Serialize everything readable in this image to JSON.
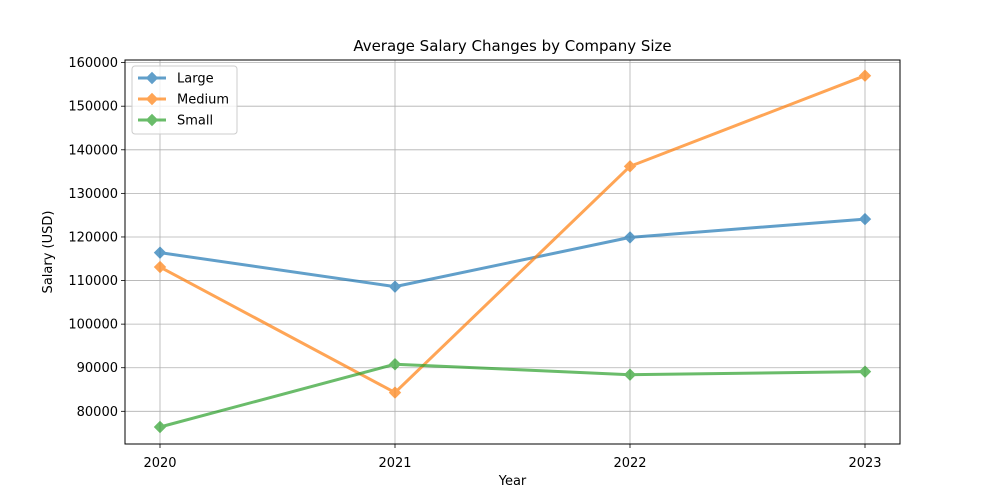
{
  "chart_data": {
    "type": "line",
    "title": "Average Salary Changes by Company Size",
    "xlabel": "Year",
    "ylabel": "Salary (USD)",
    "categories": [
      "2020",
      "2021",
      "2022",
      "2023"
    ],
    "ylim": [
      72500,
      160600
    ],
    "yticks": [
      80000,
      90000,
      100000,
      110000,
      120000,
      130000,
      140000,
      150000,
      160000
    ],
    "grid": true,
    "legend_position": "top-left",
    "marker": "diamond",
    "series": [
      {
        "name": "Large",
        "color": "#1f77b4",
        "values": [
          116400,
          108600,
          119900,
          124100
        ]
      },
      {
        "name": "Medium",
        "color": "#ff7f0e",
        "values": [
          113100,
          84300,
          136200,
          157000
        ]
      },
      {
        "name": "Small",
        "color": "#2ca02c",
        "values": [
          76400,
          90800,
          88400,
          89100
        ]
      }
    ]
  }
}
